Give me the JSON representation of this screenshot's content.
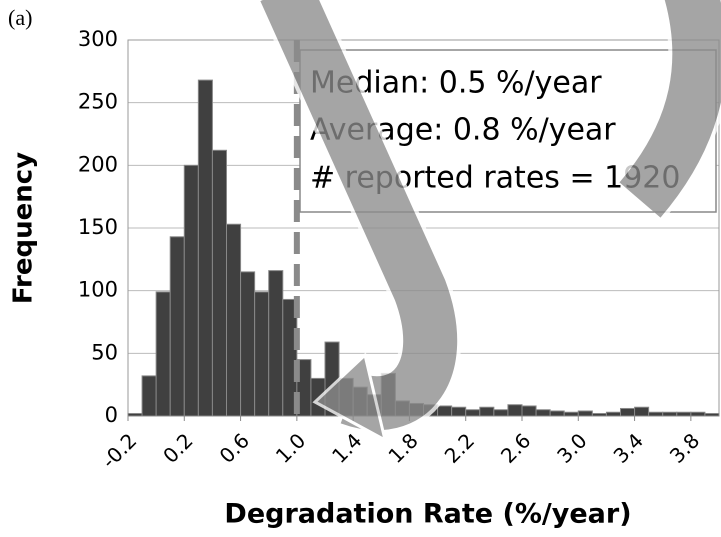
{
  "panel_label": "(a)",
  "chart_data": {
    "type": "histogram",
    "xlabel": "Degradation Rate (%/year)",
    "ylabel": "Frequency",
    "bins": [
      -0.2,
      -0.1,
      0,
      0.1,
      0.2,
      0.3,
      0.4,
      0.5,
      0.6,
      0.7,
      0.8,
      0.9,
      1.0,
      1.1,
      1.2,
      1.3,
      1.4,
      1.5,
      1.6,
      1.7,
      1.8,
      1.9,
      2.0,
      2.1,
      2.2,
      2.3,
      2.4,
      2.5,
      2.6,
      2.7,
      2.8,
      2.9,
      3.0,
      3.1,
      3.2,
      3.3,
      3.4,
      3.5,
      3.6,
      3.7,
      3.8,
      3.9,
      4.0
    ],
    "values": [
      2,
      32,
      99,
      143,
      200,
      268,
      212,
      153,
      115,
      99,
      116,
      93,
      45,
      30,
      59,
      30,
      23,
      17,
      34,
      12,
      10,
      9,
      8,
      7,
      5,
      7,
      5,
      9,
      8,
      5,
      4,
      3,
      4,
      2,
      3,
      6,
      7,
      3,
      3,
      3,
      3,
      2
    ],
    "color": "#404040",
    "xlim": [
      -0.2,
      4.0
    ],
    "xticks": [
      -0.2,
      0.2,
      0.6,
      {
        "value": 1,
        "label": "1.0"
      },
      1.4,
      1.8,
      2.2,
      2.6,
      {
        "value": 3,
        "label": "3.0"
      },
      3.4,
      3.8
    ],
    "ylim": [
      0,
      300
    ],
    "yticks": [
      0,
      50,
      100,
      150,
      200,
      250,
      300
    ],
    "grid": true,
    "reference_line_x": 1,
    "annotations": [
      "Median: 0.5 %/year",
      "Average: 0.8 %/year",
      "# reported rates = 1920"
    ]
  }
}
